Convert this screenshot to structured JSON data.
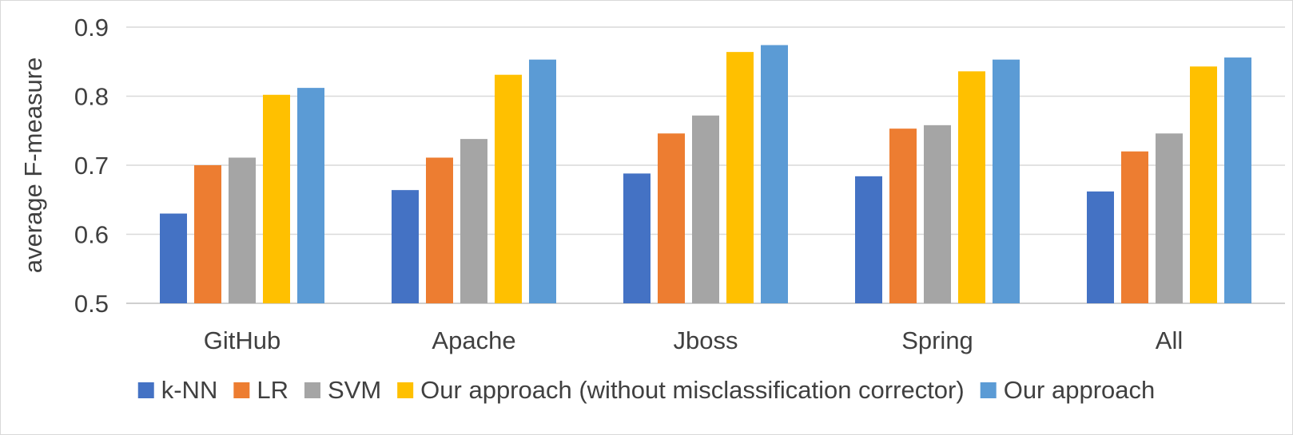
{
  "chart_data": {
    "type": "bar",
    "title": "",
    "xlabel": "",
    "ylabel": "average F-measure",
    "ylim": [
      0.5,
      0.9
    ],
    "yticks": [
      "0.5",
      "0.6",
      "0.7",
      "0.8",
      "0.9"
    ],
    "grid": true,
    "legend_position": "bottom",
    "categories": [
      "GitHub",
      "Apache",
      "Jboss",
      "Spring",
      "All"
    ],
    "series": [
      {
        "name": "k-NN",
        "color": "#4472C4",
        "values": [
          0.63,
          0.664,
          0.688,
          0.684,
          0.662
        ]
      },
      {
        "name": "LR",
        "color": "#ED7D31",
        "values": [
          0.7,
          0.711,
          0.746,
          0.753,
          0.72
        ]
      },
      {
        "name": "SVM",
        "color": "#A5A5A5",
        "values": [
          0.711,
          0.738,
          0.772,
          0.758,
          0.746
        ]
      },
      {
        "name": "Our approach (without misclassification corrector)",
        "color": "#FFC000",
        "values": [
          0.802,
          0.831,
          0.864,
          0.836,
          0.843
        ]
      },
      {
        "name": "Our approach",
        "color": "#5B9BD5",
        "values": [
          0.812,
          0.853,
          0.874,
          0.853,
          0.856
        ]
      }
    ]
  }
}
